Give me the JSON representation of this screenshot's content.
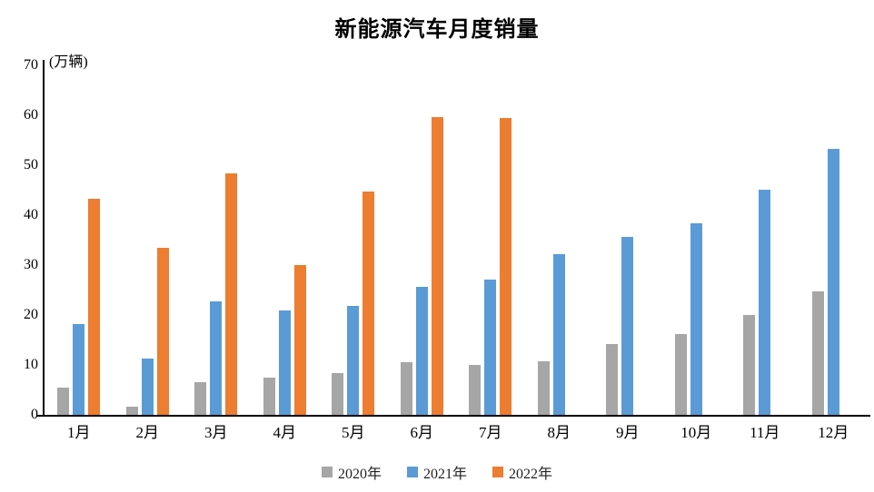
{
  "title": "新能源汽车月度销量",
  "y_axis_unit": "(万辆)",
  "chart_data": {
    "type": "bar",
    "title": "新能源汽车月度销量",
    "ylabel": "(万辆)",
    "xlabel": "",
    "categories": [
      "1月",
      "2月",
      "3月",
      "4月",
      "5月",
      "6月",
      "7月",
      "8月",
      "9月",
      "10月",
      "11月",
      "12月"
    ],
    "series": [
      {
        "name": "2020年",
        "color": "#A6A6A6",
        "values": [
          5.4,
          1.7,
          6.6,
          7.4,
          8.3,
          10.5,
          10.0,
          10.8,
          14.1,
          16.2,
          20.0,
          24.8
        ]
      },
      {
        "name": "2021年",
        "color": "#5B9BD5",
        "values": [
          18.1,
          11.2,
          22.8,
          20.9,
          21.9,
          25.7,
          27.1,
          32.1,
          35.7,
          38.4,
          45.1,
          53.2
        ]
      },
      {
        "name": "2022年",
        "color": "#ED7D31",
        "values": [
          43.2,
          33.4,
          48.4,
          30.0,
          44.8,
          59.7,
          59.4,
          null,
          null,
          null,
          null,
          null
        ]
      }
    ],
    "ylim": [
      0,
      70
    ],
    "yticks": [
      0,
      10,
      20,
      30,
      40,
      50,
      60,
      70
    ],
    "grid": false,
    "legend_position": "bottom"
  }
}
